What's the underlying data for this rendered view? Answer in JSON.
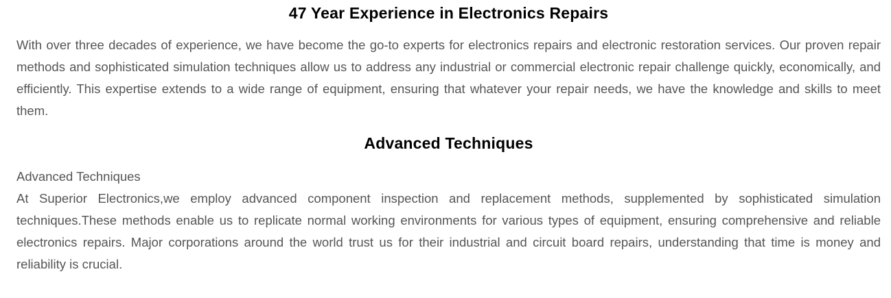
{
  "colors": {
    "heading": "#000000",
    "body_text": "#555555",
    "background": "#ffffff"
  },
  "sections": [
    {
      "heading": "47 Year Experience in Electronics Repairs",
      "paragraph": "With over three decades of experience, we have become the go-to experts for electronics repairs and electronic restoration services. Our proven repair methods and sophisticated simulation techniques allow us to address any industrial or commercial electronic repair challenge quickly, economically, and efficiently. This expertise extends to a wide range of equipment, ensuring that whatever your repair needs, we have the knowledge and skills to meet them."
    },
    {
      "heading": "Advanced Techniques",
      "label_line": "Advanced Techniques",
      "paragraph": "At Superior Electronics,we employ advanced component inspection and replacement methods, supplemented by sophisticated simulation techniques.These methods enable us to replicate normal working environments for various types of equipment, ensuring comprehensive and reliable electronics repairs. Major corporations around the world trust us for their industrial and circuit board repairs, understanding that time is money and reliability is crucial."
    }
  ]
}
